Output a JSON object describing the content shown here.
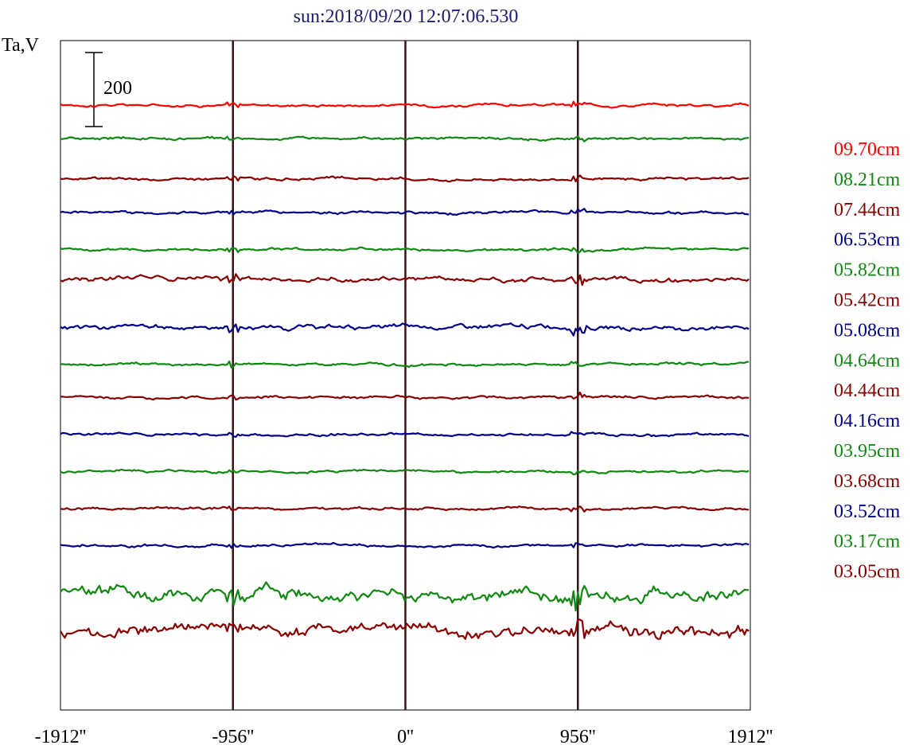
{
  "chart_data": {
    "type": "line",
    "title": "sun:2018/09/20 12:07:06.530",
    "ylabel": "Ta,V",
    "xlabel": "",
    "scale_bar_label": "200",
    "scale_bar_value": 200,
    "x_ticks": [
      "-1912''",
      "-956''",
      "0''",
      "956''",
      "1912''"
    ],
    "x_tick_values": [
      -1912,
      -956,
      0,
      956,
      1912
    ],
    "xlim": [
      -1912,
      1912
    ],
    "vertical_markers": [
      -956,
      0,
      956
    ],
    "series": [
      {
        "name": "09.70cm",
        "color": "#ff0000",
        "baseline": 0
      },
      {
        "name": "08.21cm",
        "color": "#118811",
        "baseline": -90
      },
      {
        "name": "07.44cm",
        "color": "#880000",
        "baseline": -200
      },
      {
        "name": "06.53cm",
        "color": "#000088",
        "baseline": -290
      },
      {
        "name": "05.82cm",
        "color": "#118811",
        "baseline": -390
      },
      {
        "name": "05.42cm",
        "color": "#880000",
        "baseline": -470
      },
      {
        "name": "05.08cm",
        "color": "#000088",
        "baseline": -600
      },
      {
        "name": "04.64cm",
        "color": "#118811",
        "baseline": -700
      },
      {
        "name": "04.44cm",
        "color": "#880000",
        "baseline": -790
      },
      {
        "name": "04.16cm",
        "color": "#000088",
        "baseline": -890
      },
      {
        "name": "03.95cm",
        "color": "#118811",
        "baseline": -990
      },
      {
        "name": "03.68cm",
        "color": "#880000",
        "baseline": -1090
      },
      {
        "name": "03.52cm",
        "color": "#000088",
        "baseline": -1190
      },
      {
        "name": "03.17cm",
        "color": "#118811",
        "baseline": -1320
      },
      {
        "name": "03.05cm",
        "color": "#880000",
        "baseline": -1420
      }
    ]
  }
}
